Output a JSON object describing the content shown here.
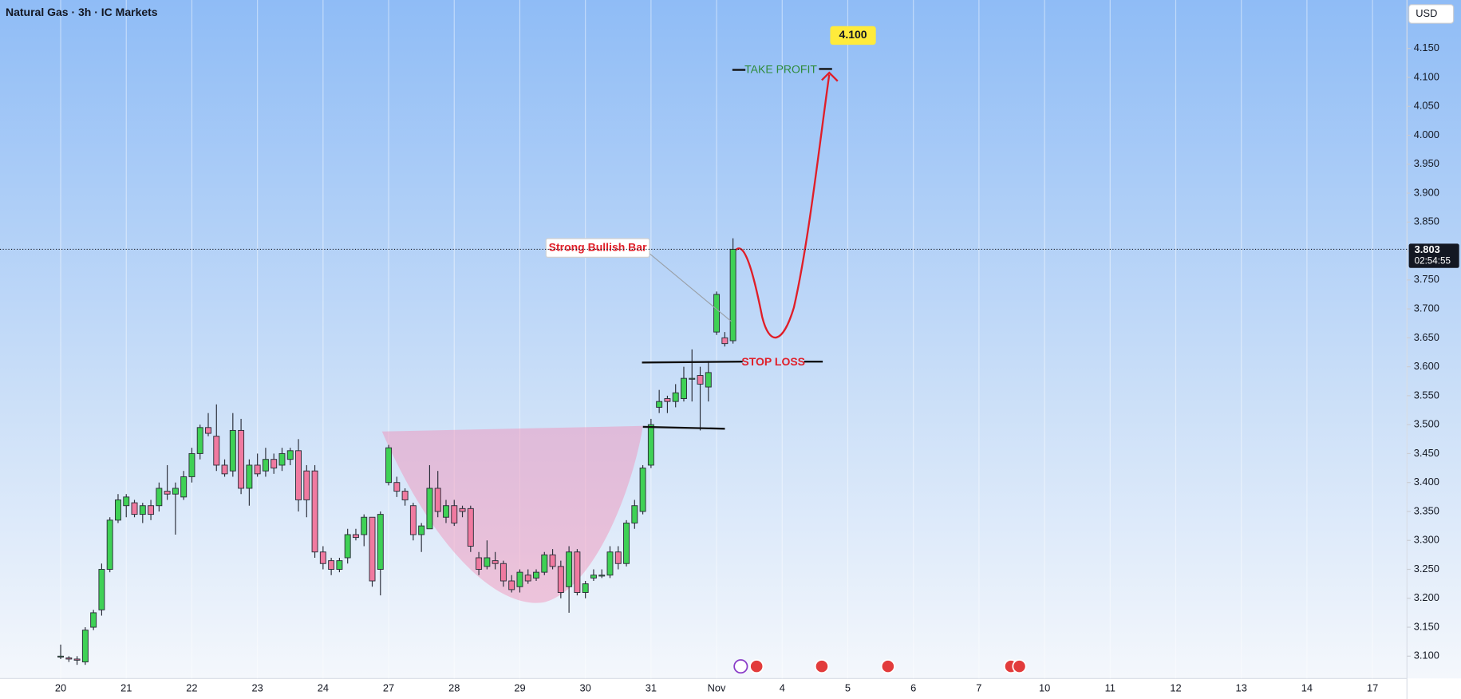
{
  "chart_data": {
    "type": "candlestick",
    "title": "Natural Gas · 3h · IC Markets",
    "currency": "USD",
    "x": [
      0,
      1,
      2,
      3,
      4,
      5,
      6,
      7,
      8,
      9,
      10,
      11,
      12,
      13,
      14,
      15,
      16,
      17,
      18,
      19,
      20,
      21,
      22,
      23,
      24,
      25,
      26,
      27,
      28,
      29,
      30,
      31,
      32,
      33,
      34,
      35,
      36,
      37,
      38,
      39,
      40,
      41,
      42,
      43,
      44,
      45,
      46,
      47,
      48,
      49,
      50,
      51,
      52,
      53,
      54,
      55,
      56,
      57,
      58,
      59,
      60,
      61,
      62,
      63,
      64,
      65,
      66,
      67,
      68,
      69,
      70,
      71,
      72,
      73,
      74,
      75,
      76,
      77,
      78,
      79,
      80,
      81,
      82
    ],
    "open": [
      3.1,
      3.097,
      3.095,
      3.09,
      3.15,
      3.18,
      3.25,
      3.335,
      3.36,
      3.365,
      3.345,
      3.36,
      3.36,
      3.385,
      3.38,
      3.375,
      3.41,
      3.45,
      3.495,
      3.48,
      3.43,
      3.42,
      3.49,
      3.39,
      3.43,
      3.42,
      3.44,
      3.43,
      3.44,
      3.455,
      3.42,
      3.42,
      3.28,
      3.265,
      3.25,
      3.27,
      3.31,
      3.31,
      3.34,
      3.25,
      3.4,
      3.4,
      3.385,
      3.36,
      3.31,
      3.32,
      3.39,
      3.34,
      3.36,
      3.355,
      3.355,
      3.27,
      3.255,
      3.265,
      3.26,
      3.23,
      3.22,
      3.24,
      3.235,
      3.245,
      3.275,
      3.255,
      3.22,
      3.28,
      3.21,
      3.235,
      3.24,
      3.24,
      3.28,
      3.26,
      3.33,
      3.35,
      3.43,
      3.53,
      3.545,
      3.54,
      3.545,
      3.58,
      3.585,
      3.565,
      3.66,
      3.65,
      3.645
    ],
    "high": [
      3.12,
      3.1,
      3.1,
      3.15,
      3.18,
      3.26,
      3.34,
      3.38,
      3.38,
      3.37,
      3.365,
      3.37,
      3.4,
      3.43,
      3.4,
      3.42,
      3.46,
      3.5,
      3.52,
      3.535,
      3.44,
      3.52,
      3.51,
      3.44,
      3.45,
      3.46,
      3.45,
      3.46,
      3.46,
      3.475,
      3.43,
      3.43,
      3.29,
      3.27,
      3.27,
      3.32,
      3.32,
      3.345,
      3.34,
      3.35,
      3.465,
      3.41,
      3.39,
      3.365,
      3.33,
      3.43,
      3.42,
      3.37,
      3.37,
      3.36,
      3.36,
      3.28,
      3.3,
      3.28,
      3.265,
      3.24,
      3.25,
      3.25,
      3.25,
      3.28,
      3.285,
      3.265,
      3.29,
      3.285,
      3.23,
      3.25,
      3.25,
      3.29,
      3.29,
      3.335,
      3.37,
      3.43,
      3.51,
      3.56,
      3.55,
      3.57,
      3.6,
      3.63,
      3.6,
      3.61,
      3.73,
      3.66,
      3.822
    ],
    "low": [
      3.095,
      3.09,
      3.085,
      3.085,
      3.145,
      3.17,
      3.245,
      3.33,
      3.34,
      3.34,
      3.33,
      3.335,
      3.35,
      3.37,
      3.31,
      3.37,
      3.4,
      3.44,
      3.48,
      3.42,
      3.41,
      3.41,
      3.38,
      3.36,
      3.41,
      3.41,
      3.415,
      3.42,
      3.43,
      3.35,
      3.34,
      3.27,
      3.25,
      3.24,
      3.245,
      3.26,
      3.3,
      3.29,
      3.22,
      3.205,
      3.395,
      3.375,
      3.36,
      3.3,
      3.28,
      3.32,
      3.34,
      3.33,
      3.325,
      3.34,
      3.28,
      3.24,
      3.25,
      3.25,
      3.22,
      3.21,
      3.21,
      3.225,
      3.23,
      3.24,
      3.25,
      3.2,
      3.175,
      3.205,
      3.2,
      3.23,
      3.235,
      3.235,
      3.25,
      3.255,
      3.32,
      3.345,
      3.425,
      3.52,
      3.52,
      3.53,
      3.54,
      3.54,
      3.49,
      3.54,
      3.655,
      3.635,
      3.64
    ],
    "close": [
      3.1,
      3.095,
      3.093,
      3.145,
      3.175,
      3.25,
      3.335,
      3.37,
      3.375,
      3.345,
      3.36,
      3.345,
      3.39,
      3.38,
      3.39,
      3.41,
      3.45,
      3.495,
      3.485,
      3.43,
      3.415,
      3.49,
      3.39,
      3.43,
      3.415,
      3.44,
      3.425,
      3.45,
      3.455,
      3.37,
      3.37,
      3.28,
      3.26,
      3.25,
      3.265,
      3.31,
      3.305,
      3.34,
      3.23,
      3.345,
      3.46,
      3.385,
      3.37,
      3.31,
      3.325,
      3.39,
      3.35,
      3.36,
      3.33,
      3.35,
      3.29,
      3.25,
      3.27,
      3.26,
      3.23,
      3.215,
      3.245,
      3.23,
      3.245,
      3.275,
      3.255,
      3.21,
      3.28,
      3.21,
      3.225,
      3.24,
      3.24,
      3.28,
      3.26,
      3.33,
      3.36,
      3.425,
      3.5,
      3.54,
      3.54,
      3.555,
      3.58,
      3.58,
      3.57,
      3.59,
      3.725,
      3.64,
      3.803
    ],
    "up_color": "#3fd155",
    "down_color": "#f07aa0",
    "xlim": [
      -7.4,
      164.2
    ],
    "xticks": [
      {
        "value": 0,
        "label": "20"
      },
      {
        "value": 8,
        "label": "21"
      },
      {
        "value": 16,
        "label": "22"
      },
      {
        "value": 24,
        "label": "23"
      },
      {
        "value": 32,
        "label": "24"
      },
      {
        "value": 40,
        "label": "27"
      },
      {
        "value": 48,
        "label": "28"
      },
      {
        "value": 56,
        "label": "29"
      },
      {
        "value": 64,
        "label": "30"
      },
      {
        "value": 72,
        "label": "31"
      },
      {
        "value": 80,
        "label": "Nov"
      },
      {
        "value": 88,
        "label": "4"
      },
      {
        "value": 96,
        "label": "5"
      },
      {
        "value": 104,
        "label": "6"
      },
      {
        "value": 112,
        "label": "7"
      },
      {
        "value": 120,
        "label": "10"
      },
      {
        "value": 128,
        "label": "11"
      },
      {
        "value": 136,
        "label": "12"
      },
      {
        "value": 144,
        "label": "13"
      },
      {
        "value": 152,
        "label": "14"
      },
      {
        "value": 160,
        "label": "17"
      }
    ],
    "ylim": [
      3.0614,
      4.2337
    ],
    "yticks": [
      {
        "value": 3.1,
        "label": "3.100"
      },
      {
        "value": 3.15,
        "label": "3.150"
      },
      {
        "value": 3.2,
        "label": "3.200"
      },
      {
        "value": 3.25,
        "label": "3.250"
      },
      {
        "value": 3.3,
        "label": "3.300"
      },
      {
        "value": 3.35,
        "label": "3.350"
      },
      {
        "value": 3.4,
        "label": "3.400"
      },
      {
        "value": 3.45,
        "label": "3.450"
      },
      {
        "value": 3.5,
        "label": "3.500"
      },
      {
        "value": 3.55,
        "label": "3.550"
      },
      {
        "value": 3.6,
        "label": "3.600"
      },
      {
        "value": 3.65,
        "label": "3.650"
      },
      {
        "value": 3.7,
        "label": "3.700"
      },
      {
        "value": 3.75,
        "label": "3.750"
      },
      {
        "value": 3.8,
        "label": "3.800"
      },
      {
        "value": 3.85,
        "label": "3.850"
      },
      {
        "value": 3.9,
        "label": "3.900"
      },
      {
        "value": 3.95,
        "label": "3.950"
      },
      {
        "value": 4.0,
        "label": "4.000"
      },
      {
        "value": 4.05,
        "label": "4.050"
      },
      {
        "value": 4.1,
        "label": "4.100"
      },
      {
        "value": 4.15,
        "label": "4.150"
      }
    ],
    "grid": "vertical",
    "last_price": 3.803,
    "countdown": "02:54:55",
    "annotations": {
      "strong_bullish_bar": "Strong Bullish Bar",
      "stop_loss": "STOP LOSS",
      "take_profit": "TAKE PROFIT",
      "target": {
        "value": 4.1,
        "label": "4.100"
      }
    }
  }
}
